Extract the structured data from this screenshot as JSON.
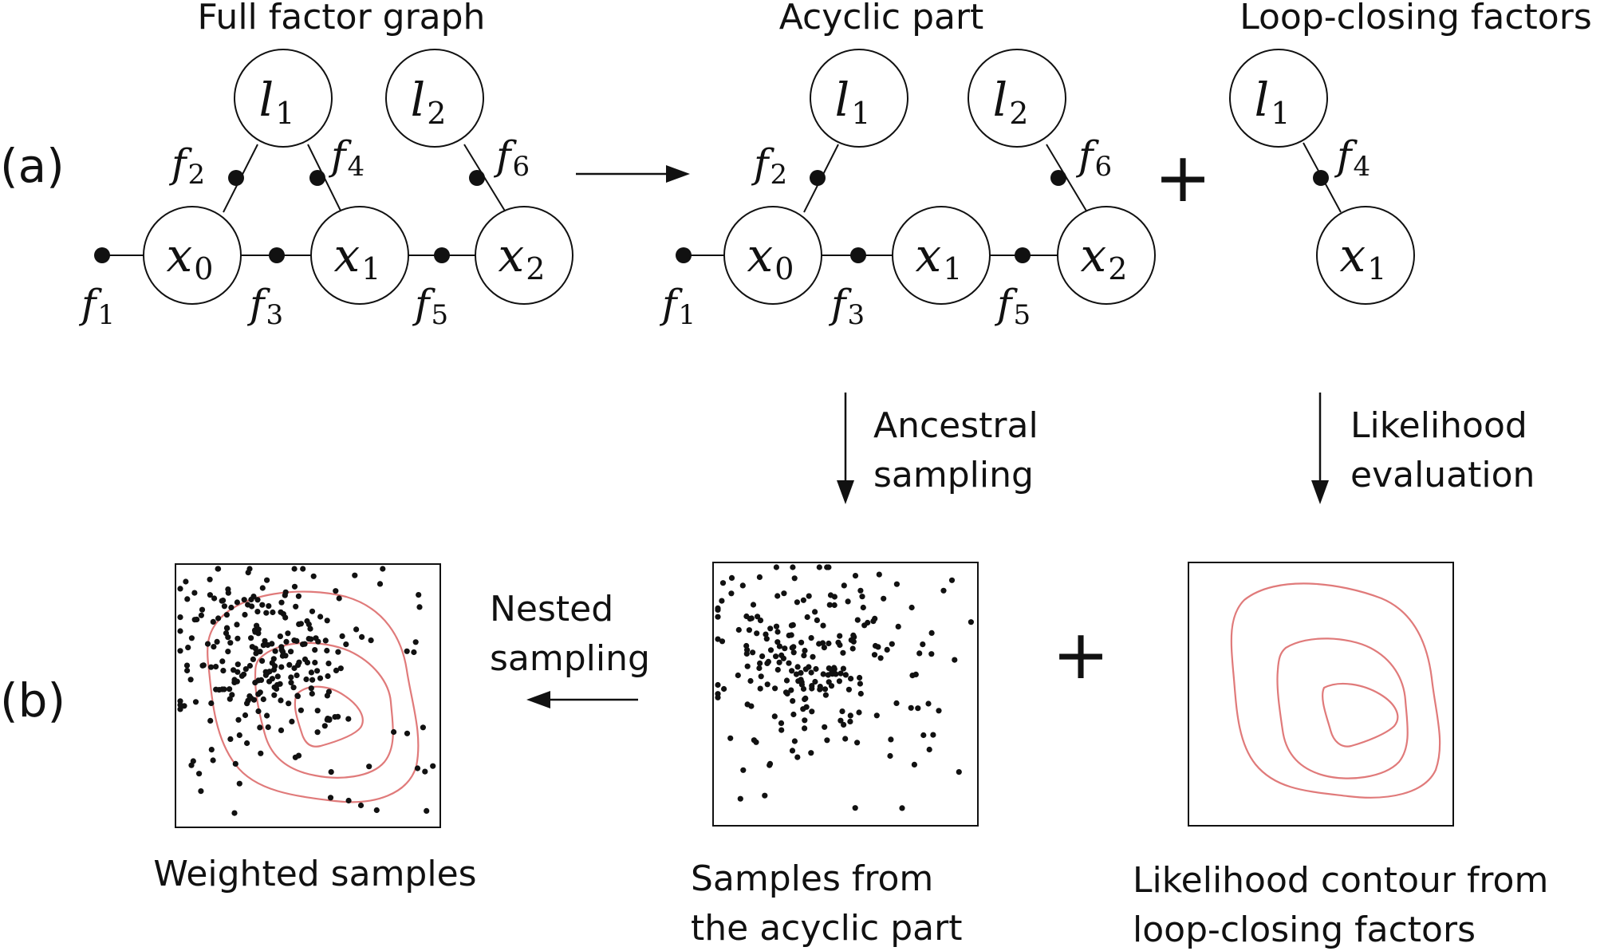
{
  "panel_labels": {
    "a": "(a)",
    "b": "(b)"
  },
  "titles": {
    "full_graph": "Full factor graph",
    "acyclic": "Acyclic part",
    "loop": "Loop-closing factors"
  },
  "plus_symbol": "+",
  "nodes": {
    "l1": {
      "base": "l",
      "sub": "1"
    },
    "l2": {
      "base": "l",
      "sub": "2"
    },
    "x0": {
      "base": "x",
      "sub": "0"
    },
    "x1": {
      "base": "x",
      "sub": "1"
    },
    "x2": {
      "base": "x",
      "sub": "2"
    }
  },
  "factors": {
    "f1": {
      "base": "f",
      "sub": "1"
    },
    "f2": {
      "base": "f",
      "sub": "2"
    },
    "f3": {
      "base": "f",
      "sub": "3"
    },
    "f4": {
      "base": "f",
      "sub": "4"
    },
    "f5": {
      "base": "f",
      "sub": "5"
    },
    "f6": {
      "base": "f",
      "sub": "6"
    }
  },
  "steps": {
    "ancestral": {
      "line1": "Ancestral",
      "line2": "sampling"
    },
    "likelihood": {
      "line1": "Likelihood",
      "line2": "evaluation"
    },
    "nested": {
      "line1": "Nested",
      "line2": "sampling"
    }
  },
  "captions": {
    "weighted": "Weighted samples",
    "samples": {
      "line1": "Samples from",
      "line2": "the acyclic part"
    },
    "contour": {
      "line1": "Likelihood contour from",
      "line2": "loop-closing factors"
    }
  },
  "colors": {
    "ink": "#111111",
    "contour": "#e07a7a"
  }
}
